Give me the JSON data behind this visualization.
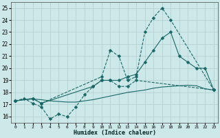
{
  "background_color": "#cce8e8",
  "grid_color": "#b0cccc",
  "line_color": "#1a6666",
  "xlabel": "Humidex (Indice chaleur)",
  "xlim": [
    -0.5,
    23.5
  ],
  "ylim": [
    15.5,
    25.5
  ],
  "xticks": [
    0,
    1,
    2,
    3,
    4,
    5,
    6,
    7,
    8,
    9,
    10,
    11,
    12,
    13,
    14,
    15,
    16,
    17,
    18,
    19,
    20,
    21,
    22,
    23
  ],
  "yticks": [
    16,
    17,
    18,
    19,
    20,
    21,
    22,
    23,
    24,
    25
  ],
  "series": [
    {
      "x": [
        0,
        2,
        3,
        10,
        11,
        12,
        13,
        14,
        15,
        16,
        17,
        18,
        23
      ],
      "y": [
        17.3,
        17.5,
        17.1,
        19.3,
        21.5,
        21.0,
        19.0,
        19.3,
        23.0,
        24.2,
        25.0,
        24.0,
        18.2
      ],
      "marker": "D",
      "markersize": 2.5,
      "linewidth": 0.8,
      "linestyle": "--"
    },
    {
      "x": [
        0,
        1,
        2,
        3,
        4,
        5,
        6,
        7,
        8,
        9,
        10,
        11,
        12,
        13,
        14,
        15,
        16,
        17,
        18,
        19,
        20,
        21,
        22,
        23
      ],
      "y": [
        17.3,
        17.4,
        17.45,
        17.4,
        17.3,
        17.25,
        17.2,
        17.2,
        17.3,
        17.4,
        17.55,
        17.7,
        17.85,
        18.0,
        18.1,
        18.2,
        18.35,
        18.45,
        18.5,
        18.55,
        18.6,
        18.55,
        18.3,
        18.2
      ],
      "marker": null,
      "markersize": 0,
      "linewidth": 0.8,
      "linestyle": "-"
    },
    {
      "x": [
        0,
        2,
        3,
        9,
        10,
        11,
        12,
        13,
        14,
        15,
        16,
        17,
        18,
        19,
        20,
        21,
        22,
        23
      ],
      "y": [
        17.3,
        17.5,
        17.1,
        18.5,
        19.0,
        19.0,
        19.0,
        19.3,
        19.5,
        20.5,
        21.5,
        22.5,
        23.0,
        21.0,
        20.5,
        20.0,
        20.0,
        18.2
      ],
      "marker": "D",
      "markersize": 2.5,
      "linewidth": 0.8,
      "linestyle": "-"
    },
    {
      "x": [
        0,
        1,
        2,
        3,
        4,
        5,
        6,
        7,
        8,
        9,
        10,
        11,
        12,
        13,
        14,
        23
      ],
      "y": [
        17.3,
        17.5,
        17.1,
        16.8,
        15.8,
        16.2,
        16.0,
        16.8,
        17.8,
        18.5,
        19.0,
        19.0,
        18.5,
        18.5,
        19.0,
        18.2
      ],
      "marker": "D",
      "markersize": 2.5,
      "linewidth": 0.8,
      "linestyle": "--"
    }
  ]
}
